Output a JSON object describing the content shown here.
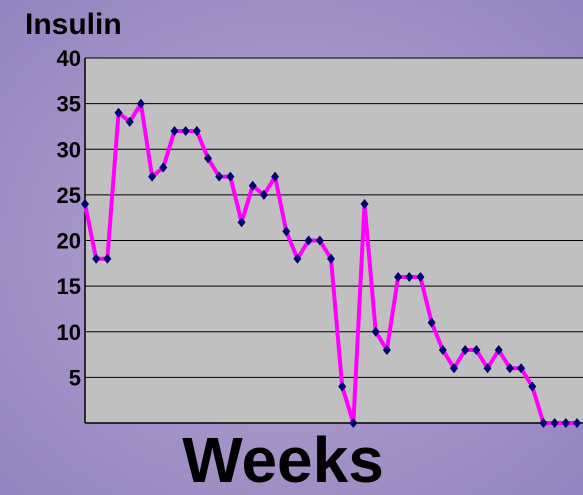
{
  "chart_data": {
    "type": "line",
    "title": "Insulin",
    "x_label": "Weeks",
    "series": [
      {
        "name": "Insulin",
        "color": "#ff00ff",
        "marker_color": "#00006e",
        "values": [
          24,
          18,
          18,
          34,
          33,
          35,
          27,
          28,
          32,
          32,
          32,
          29,
          27,
          27,
          22,
          26,
          25,
          27,
          21,
          18,
          20,
          20,
          18,
          4,
          0,
          24,
          10,
          8,
          16,
          16,
          16,
          11,
          8,
          6,
          8,
          8,
          6,
          8,
          6,
          6,
          4,
          0,
          0,
          0,
          0
        ]
      }
    ],
    "ylim": [
      0,
      40
    ],
    "yticks": [
      5,
      10,
      15,
      20,
      25,
      30,
      35,
      40
    ],
    "grid": true
  }
}
